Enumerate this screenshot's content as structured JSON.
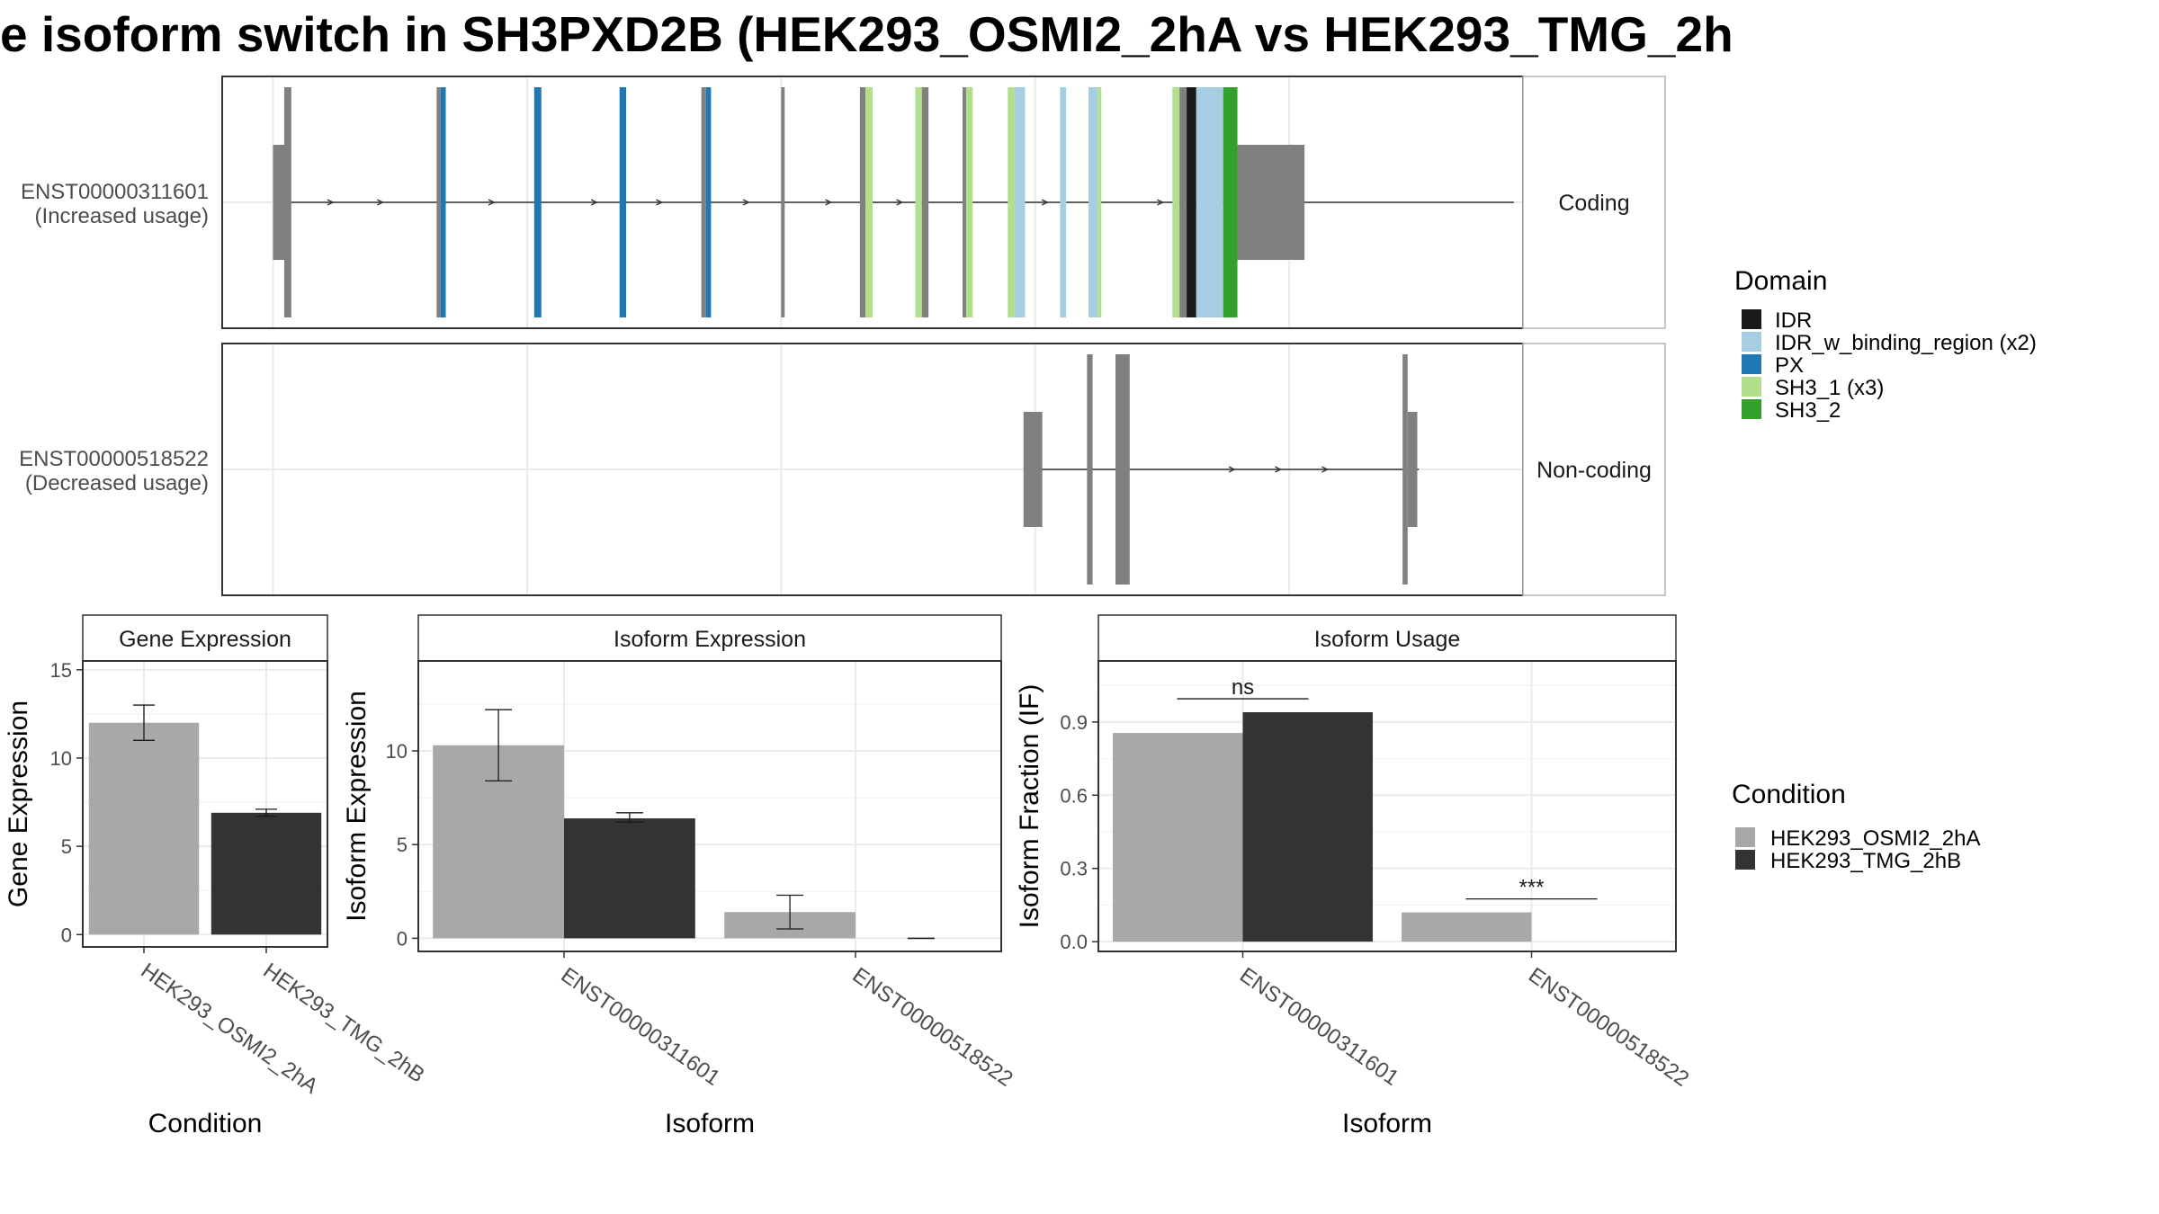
{
  "title": "e isoform switch in SH3PXD2B (HEK293_OSMI2_2hA vs HEK293_TMG_2h",
  "colors": {
    "cond_a": "#a8a8a8",
    "cond_b": "#333333",
    "exon": "#808080",
    "IDR": "#1a1a1a",
    "IDR_w_binding_region": "#a6cee3",
    "PX": "#1f78b4",
    "SH3_1": "#b2df8a",
    "SH3_2": "#33a02c"
  },
  "legend_domain": {
    "title": "Domain",
    "items": [
      {
        "label": "IDR",
        "key": "IDR"
      },
      {
        "label": "IDR_w_binding_region (x2)",
        "key": "IDR_w_binding_region"
      },
      {
        "label": "PX",
        "key": "PX"
      },
      {
        "label": "SH3_1 (x3)",
        "key": "SH3_1"
      },
      {
        "label": "SH3_2",
        "key": "SH3_2"
      }
    ]
  },
  "legend_condition": {
    "title": "Condition",
    "items": [
      {
        "label": "HEK293_OSMI2_2hA",
        "key": "cond_a"
      },
      {
        "label": "HEK293_TMG_2hB",
        "key": "cond_b"
      }
    ]
  },
  "chart_data": [
    {
      "type": "gene_structure",
      "transcripts": [
        {
          "name": "ENST00000311601",
          "usage_label": "(Increased usage)",
          "strip_label": "Coding",
          "intron": [
            0.14,
            24.42
          ],
          "exons": [
            {
              "start": 0.0,
              "end": 0.25,
              "kind": "utr",
              "feature": "exon"
            },
            {
              "start": 0.22,
              "end": 0.36,
              "kind": "cds",
              "feature": "exon"
            },
            {
              "start": 3.22,
              "end": 3.3,
              "kind": "cds",
              "feature": "exon"
            },
            {
              "start": 3.3,
              "end": 3.4,
              "kind": "cds",
              "feature": "PX"
            },
            {
              "start": 5.14,
              "end": 5.28,
              "kind": "cds",
              "feature": "PX"
            },
            {
              "start": 6.82,
              "end": 6.95,
              "kind": "cds",
              "feature": "PX"
            },
            {
              "start": 8.43,
              "end": 8.52,
              "kind": "cds",
              "feature": "exon"
            },
            {
              "start": 8.52,
              "end": 8.62,
              "kind": "cds",
              "feature": "PX"
            },
            {
              "start": 10.0,
              "end": 10.07,
              "kind": "cds",
              "feature": "exon"
            },
            {
              "start": 11.55,
              "end": 11.66,
              "kind": "cds",
              "feature": "exon"
            },
            {
              "start": 11.66,
              "end": 11.8,
              "kind": "cds",
              "feature": "SH3_1"
            },
            {
              "start": 12.64,
              "end": 12.77,
              "kind": "cds",
              "feature": "SH3_1"
            },
            {
              "start": 12.77,
              "end": 12.9,
              "kind": "cds",
              "feature": "exon"
            },
            {
              "start": 13.57,
              "end": 13.64,
              "kind": "cds",
              "feature": "exon"
            },
            {
              "start": 13.64,
              "end": 13.77,
              "kind": "cds",
              "feature": "SH3_1"
            },
            {
              "start": 14.46,
              "end": 14.59,
              "kind": "cds",
              "feature": "SH3_1"
            },
            {
              "start": 14.59,
              "end": 14.8,
              "kind": "cds",
              "feature": "IDR_w_binding_region"
            },
            {
              "start": 15.49,
              "end": 15.61,
              "kind": "cds",
              "feature": "IDR_w_binding_region"
            },
            {
              "start": 16.05,
              "end": 16.23,
              "kind": "cds",
              "feature": "IDR_w_binding_region"
            },
            {
              "start": 16.23,
              "end": 16.3,
              "kind": "cds",
              "feature": "SH3_1"
            },
            {
              "start": 17.7,
              "end": 17.84,
              "kind": "cds",
              "feature": "SH3_1"
            },
            {
              "start": 17.84,
              "end": 17.98,
              "kind": "cds",
              "feature": "exon"
            },
            {
              "start": 17.98,
              "end": 18.17,
              "kind": "cds",
              "feature": "IDR"
            },
            {
              "start": 18.17,
              "end": 18.7,
              "kind": "cds",
              "feature": "IDR_w_binding_region"
            },
            {
              "start": 18.7,
              "end": 18.98,
              "kind": "cds",
              "feature": "SH3_2"
            },
            {
              "start": 18.98,
              "end": 20.3,
              "kind": "utr",
              "feature": "exon"
            }
          ],
          "arrows": [
            1.16,
            2.14,
            4.33,
            6.35,
            7.63,
            9.34,
            10.96,
            12.36,
            15.22,
            17.49
          ]
        },
        {
          "name": "ENST00000518522",
          "usage_label": "(Decreased usage)",
          "strip_label": "Non-coding",
          "intron": [
            15.06,
            22.55
          ],
          "exons": [
            {
              "start": 14.77,
              "end": 15.14,
              "kind": "utr",
              "feature": "exon"
            },
            {
              "start": 16.02,
              "end": 16.13,
              "kind": "cds",
              "feature": "exon"
            },
            {
              "start": 16.58,
              "end": 16.86,
              "kind": "cds",
              "feature": "exon"
            },
            {
              "start": 22.23,
              "end": 22.33,
              "kind": "cds",
              "feature": "exon"
            },
            {
              "start": 22.33,
              "end": 22.52,
              "kind": "utr",
              "feature": "exon"
            }
          ],
          "arrows": [
            18.9,
            19.81,
            20.73
          ]
        }
      ]
    },
    {
      "type": "bar",
      "title": "Gene Expression",
      "xlabel": "Condition",
      "ylabel": "Gene Expression",
      "ylim": [
        -0.7,
        15.5
      ],
      "yticks": [
        0,
        5,
        10,
        15
      ],
      "categories": [
        "HEK293_OSMI2_2hA",
        "HEK293_TMG_2hB"
      ],
      "bars": [
        {
          "category": "HEK293_OSMI2_2hA",
          "value": 12.0,
          "err": [
            11.0,
            13.0
          ],
          "condition": "cond_a"
        },
        {
          "category": "HEK293_TMG_2hB",
          "value": 6.9,
          "err": [
            6.7,
            7.1
          ],
          "condition": "cond_b"
        }
      ]
    },
    {
      "type": "bar",
      "title": "Isoform Expression",
      "xlabel": "Isoform",
      "ylabel": "Isoform Expression",
      "ylim": [
        -0.7,
        14.8
      ],
      "yticks": [
        0,
        5,
        10
      ],
      "categories": [
        "ENST00000311601",
        "ENST00000518522"
      ],
      "series": [
        {
          "name": "HEK293_OSMI2_2hA",
          "values": [
            10.3,
            1.4
          ],
          "err_low": [
            8.4,
            0.5
          ],
          "err_high": [
            12.2,
            2.3
          ]
        },
        {
          "name": "HEK293_TMG_2hB",
          "values": [
            6.4,
            0.0
          ],
          "err_low": [
            6.2,
            0.0
          ],
          "err_high": [
            6.7,
            0.0
          ]
        }
      ]
    },
    {
      "type": "bar",
      "title": "Isoform Usage",
      "xlabel": "Isoform",
      "ylabel": "Isoform Fraction (IF)",
      "ylim": [
        -0.04,
        1.15
      ],
      "yticks": [
        0.0,
        0.3,
        0.6,
        0.9
      ],
      "ytick_labels": [
        "0.0",
        "0.3",
        "0.6",
        "0.9"
      ],
      "categories": [
        "ENST00000311601",
        "ENST00000518522"
      ],
      "series": [
        {
          "name": "HEK293_OSMI2_2hA",
          "values": [
            0.855,
            0.12
          ]
        },
        {
          "name": "HEK293_TMG_2hB",
          "values": [
            0.94,
            0.0
          ]
        }
      ],
      "significance": [
        {
          "category": "ENST00000311601",
          "label": "ns",
          "y": 0.995
        },
        {
          "category": "ENST00000518522",
          "label": "***",
          "y": 0.175
        }
      ]
    }
  ]
}
